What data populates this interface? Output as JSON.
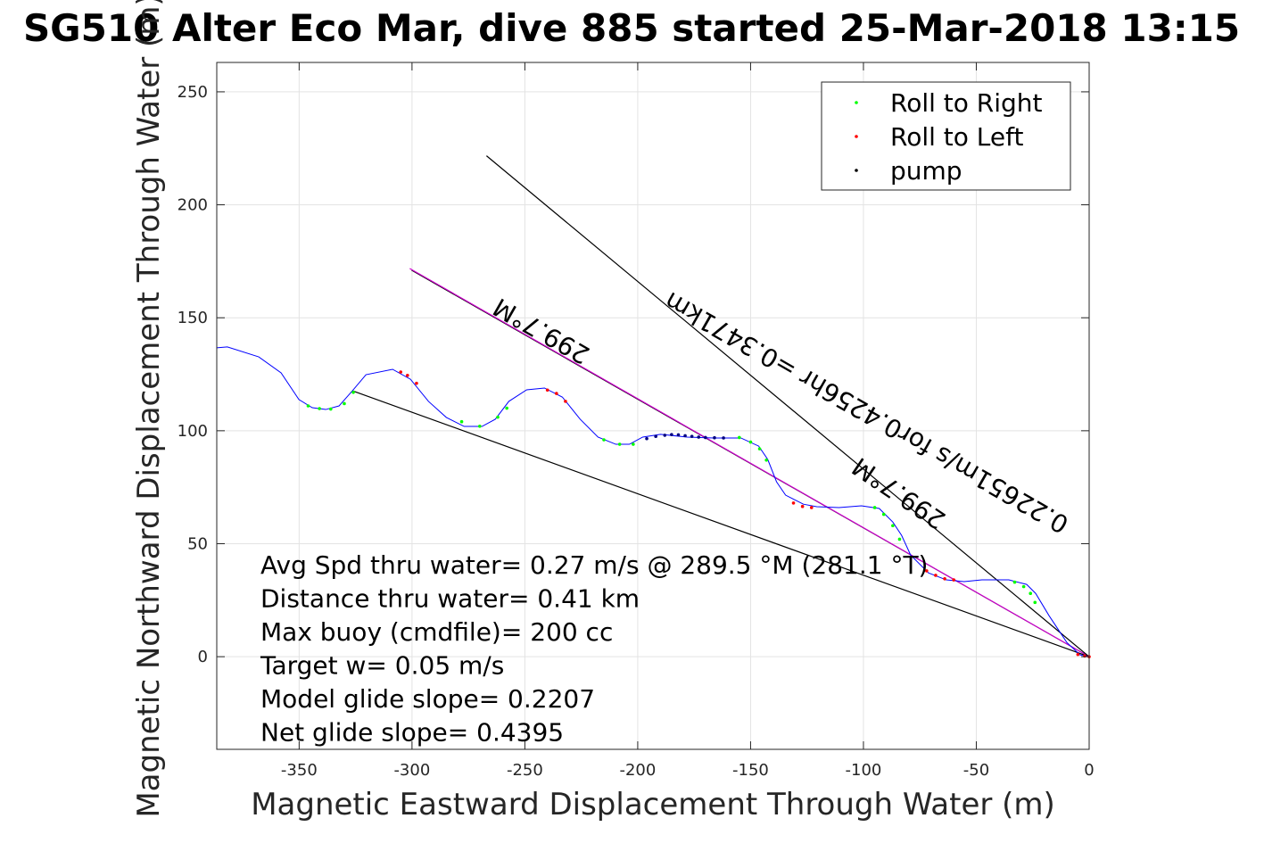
{
  "chart_data": {
    "type": "line",
    "title": "SG510 Alter Eco Mar, dive 885 started 25-Mar-2018 13:15",
    "xlabel": "Magnetic Eastward Displacement Through Water (m)",
    "ylabel": "Magnetic Northward Displacement Through Water (m)",
    "xlim": [
      -386.5,
      0
    ],
    "ylim": [
      -41,
      263
    ],
    "xticks": [
      -350,
      -300,
      -250,
      -200,
      -150,
      -100,
      -50,
      0
    ],
    "yticks": [
      0,
      50,
      100,
      150,
      200,
      250
    ],
    "grid": true,
    "legend_position": "top-right",
    "legend": [
      {
        "label": "Roll to Right",
        "color": "#00ff00"
      },
      {
        "label": "Roll to Left",
        "color": "#ff0000"
      },
      {
        "label": "pump",
        "color": "#000000"
      }
    ],
    "trajectory": {
      "color": "#0000ff",
      "x": [
        -386.5,
        -381.8,
        -367.9,
        -358.0,
        -350.1,
        -344.2,
        -338.2,
        -332.3,
        -326.4,
        -320.4,
        -308.6,
        -300.7,
        -292.7,
        -284.8,
        -276.9,
        -269.0,
        -263.1,
        -257.1,
        -249.2,
        -241.3,
        -233.4,
        -225.5,
        -217.6,
        -209.7,
        -203.7,
        -197.8,
        -189.9,
        -178.0,
        -166.2,
        -154.3,
        -146.4,
        -142.4,
        -138.5,
        -134.5,
        -126.6,
        -120.7,
        -110.8,
        -100.9,
        -93.0,
        -87.0,
        -83.1,
        -79.1,
        -71.2,
        -63.3,
        -55.4,
        -47.5,
        -35.6,
        -27.7,
        -23.7,
        -17.8,
        -9.9,
        -4.0,
        0
      ],
      "y": [
        136.7,
        137.1,
        132.7,
        125.6,
        113.8,
        110.2,
        109.4,
        111.0,
        117.7,
        124.8,
        127.2,
        122.8,
        113.0,
        105.9,
        101.9,
        101.9,
        105.1,
        113.0,
        118.1,
        118.9,
        114.9,
        105.1,
        97.2,
        94.0,
        94.0,
        97.2,
        98.4,
        97.2,
        96.8,
        96.8,
        93.2,
        87.3,
        77.4,
        71.5,
        67.5,
        66.4,
        66.0,
        66.8,
        65.6,
        59.6,
        53.7,
        45.0,
        37.1,
        34.0,
        33.2,
        34.0,
        34.0,
        32.0,
        28.0,
        18.2,
        6.3,
        0.8,
        0
      ]
    },
    "roll_right_points": [
      [
        -346,
        111
      ],
      [
        -341,
        109.8
      ],
      [
        -336,
        109.6
      ],
      [
        -330,
        112
      ],
      [
        -326,
        117
      ],
      [
        -278,
        104
      ],
      [
        -270,
        102
      ],
      [
        -262,
        106
      ],
      [
        -258,
        110
      ],
      [
        -215,
        96
      ],
      [
        -208,
        94
      ],
      [
        -202,
        94
      ],
      [
        -155,
        97
      ],
      [
        -150,
        95
      ],
      [
        -146,
        92
      ],
      [
        -143,
        87
      ],
      [
        -95,
        66
      ],
      [
        -91,
        63
      ],
      [
        -87,
        58
      ],
      [
        -84,
        52
      ],
      [
        -33,
        33
      ],
      [
        -29,
        31
      ],
      [
        -26,
        28
      ],
      [
        -24,
        24
      ]
    ],
    "roll_left_points": [
      [
        -305,
        126
      ],
      [
        -302,
        124.5
      ],
      [
        -298,
        121
      ],
      [
        -240,
        118
      ],
      [
        -236,
        116.5
      ],
      [
        -232,
        113
      ],
      [
        -131,
        68
      ],
      [
        -127,
        66.5
      ],
      [
        -123,
        66
      ],
      [
        -72,
        38
      ],
      [
        -68,
        36
      ],
      [
        -64,
        34.5
      ],
      [
        -60,
        34
      ],
      [
        -5,
        1
      ],
      [
        -2,
        0.3
      ],
      [
        0,
        0
      ]
    ],
    "pump_points": [
      [
        -196,
        96.5
      ],
      [
        -192,
        97.5
      ],
      [
        -188,
        98
      ],
      [
        -185,
        98.3
      ],
      [
        -182,
        98.2
      ],
      [
        -179,
        97.8
      ],
      [
        -176,
        97.5
      ],
      [
        -173,
        97.2
      ],
      [
        -170,
        97
      ],
      [
        -166,
        96.9
      ],
      [
        -162,
        96.8
      ]
    ],
    "lines": [
      {
        "name": "heading-line",
        "color": "#cc00cc",
        "from": [
          -301,
          171.8
        ],
        "to": [
          0,
          0
        ]
      },
      {
        "name": "bound-line-lower",
        "color": "#000000",
        "from": [
          -326.4,
          117.7
        ],
        "to": [
          0,
          0
        ]
      },
      {
        "name": "bound-line-upper",
        "color": "#000000",
        "from": [
          -267,
          221.7
        ],
        "to": [
          0,
          0
        ]
      }
    ],
    "rotated_labels": [
      "299.7°M",
      "0.22651m/s for0.4256hr =0.3471km",
      "299.7°M"
    ],
    "annotations": [
      "Avg Spd thru water=  0.27 m/s @ 289.5 °M (281.1 °T)",
      "Distance thru water=  0.41 km",
      "Max buoy (cmdfile)= 200 cc",
      "Target w= 0.05 m/s",
      "Model glide slope= 0.2207",
      "Net glide slope= 0.4395"
    ]
  }
}
